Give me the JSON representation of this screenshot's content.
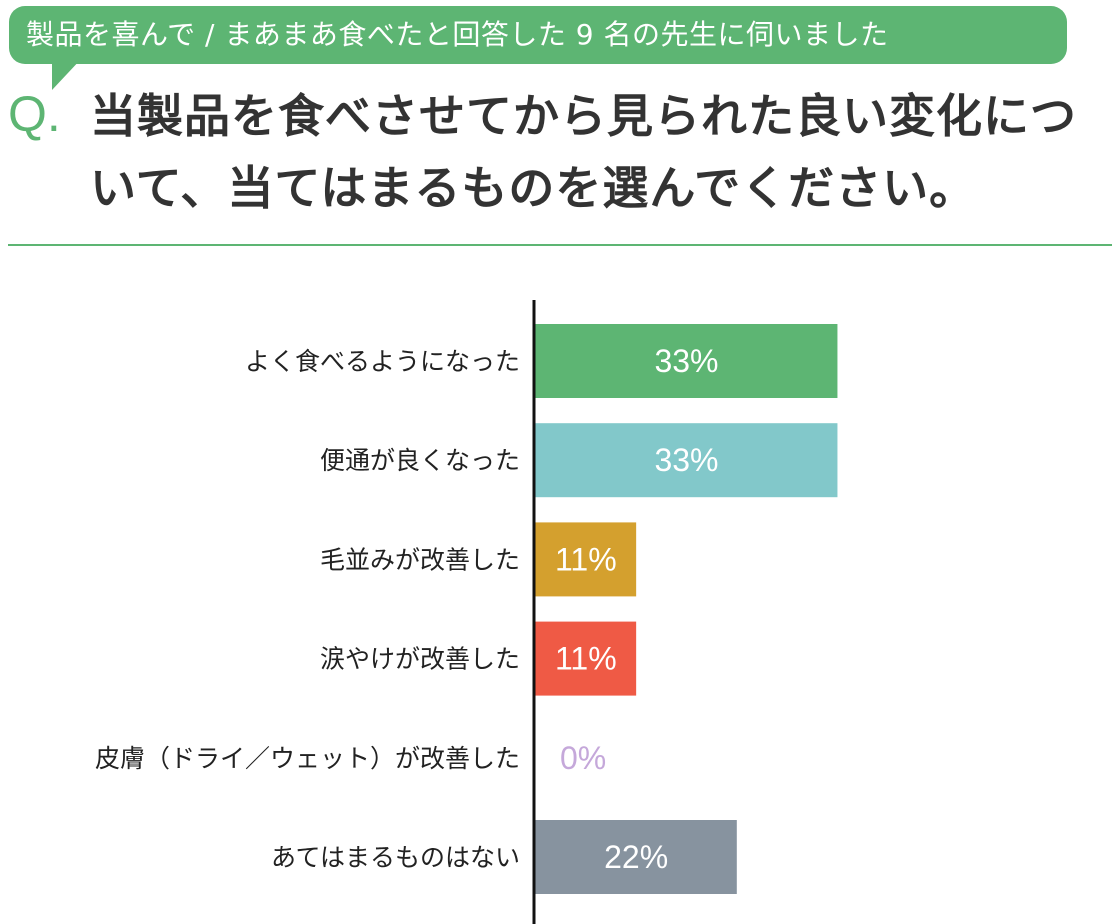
{
  "header": {
    "badge_text": "製品を喜んで / まあまあ食べたと回答した 9 名の先生に伺いました",
    "q_mark": "Q.",
    "question": "当製品を食べさせてから見られた良い変化について、当てはまるものを選んでください。"
  },
  "colors": {
    "accent": "#5db573",
    "bars": [
      "#5db573",
      "#82c8ca",
      "#d4a02e",
      "#ef5a45",
      "#c5a8da",
      "#87939f"
    ],
    "zero_label": "#c5a8da"
  },
  "chart_data": {
    "type": "bar",
    "orientation": "horizontal",
    "categories": [
      "よく食べるようになった",
      "便通が良くなった",
      "毛並みが改善した",
      "涙やけが改善した",
      "皮膚（ドライ／ウェット）が改善した",
      "あてはまるものはない"
    ],
    "values": [
      33,
      33,
      11,
      11,
      0,
      22
    ],
    "value_labels": [
      "33%",
      "33%",
      "11%",
      "11%",
      "0%",
      "22%"
    ],
    "unit": "%",
    "xlim": [
      0,
      100
    ],
    "grid": false
  }
}
